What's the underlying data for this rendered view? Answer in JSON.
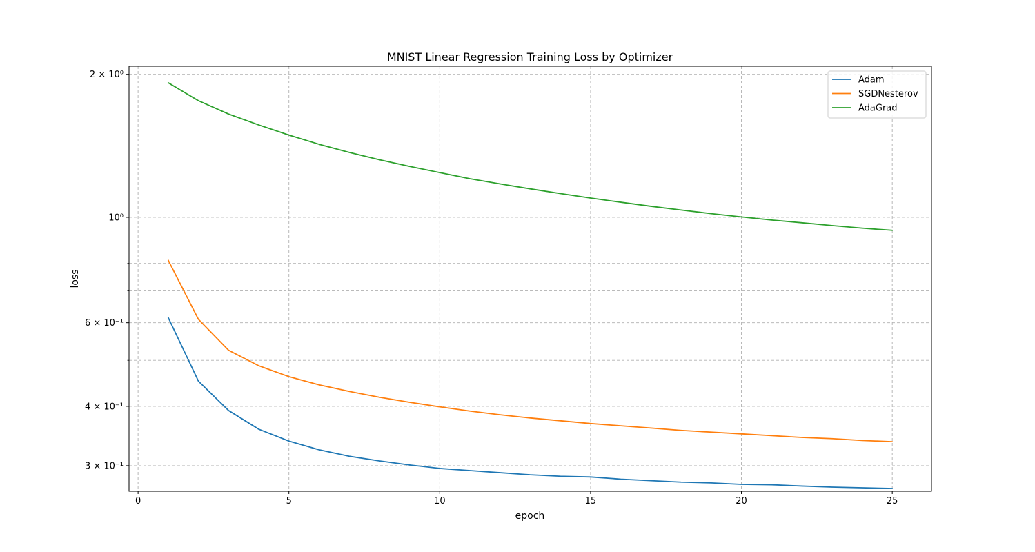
{
  "chart_data": {
    "type": "line",
    "title": "MNIST Linear Regression Training Loss by Optimizer",
    "xlabel": "epoch",
    "ylabel": "loss",
    "yscale": "log",
    "xlim": [
      -0.3,
      26.3
    ],
    "ylim": [
      0.265,
      2.08
    ],
    "x_ticks": [
      {
        "value": 0,
        "label": "0"
      },
      {
        "value": 5,
        "label": "5"
      },
      {
        "value": 10,
        "label": "10"
      },
      {
        "value": 15,
        "label": "15"
      },
      {
        "value": 20,
        "label": "20"
      },
      {
        "value": 25,
        "label": "25"
      }
    ],
    "y_major_ticks": [
      {
        "value": 0.3,
        "label": "3 × 10⁻¹"
      },
      {
        "value": 0.4,
        "label": "4 × 10⁻¹"
      },
      {
        "value": 0.6,
        "label": "6 × 10⁻¹"
      },
      {
        "value": 1.0,
        "label": "10⁰"
      },
      {
        "value": 2.0,
        "label": "2 × 10⁰"
      }
    ],
    "y_minor_ticks": [
      0.5,
      0.7,
      0.8,
      0.9
    ],
    "grid": true,
    "legend": "top-right",
    "x": [
      1,
      2,
      3,
      4,
      5,
      6,
      7,
      8,
      9,
      10,
      11,
      12,
      13,
      14,
      15,
      16,
      17,
      18,
      19,
      20,
      21,
      22,
      23,
      24,
      25
    ],
    "series": [
      {
        "name": "Adam",
        "color": "#1f77b4",
        "values": [
          0.615,
          0.452,
          0.392,
          0.358,
          0.338,
          0.324,
          0.314,
          0.307,
          0.301,
          0.296,
          0.293,
          0.29,
          0.287,
          0.285,
          0.284,
          0.281,
          0.279,
          0.277,
          0.276,
          0.274,
          0.2735,
          0.2718,
          0.2704,
          0.2695,
          0.2685
        ]
      },
      {
        "name": "SGDNesterov",
        "color": "#ff7f0e",
        "values": [
          0.812,
          0.61,
          0.525,
          0.487,
          0.462,
          0.444,
          0.43,
          0.418,
          0.408,
          0.399,
          0.391,
          0.384,
          0.378,
          0.373,
          0.368,
          0.364,
          0.36,
          0.356,
          0.353,
          0.35,
          0.347,
          0.344,
          0.342,
          0.339,
          0.337
        ]
      },
      {
        "name": "AdaGrad",
        "color": "#2ca02c",
        "values": [
          1.92,
          1.76,
          1.65,
          1.565,
          1.49,
          1.425,
          1.37,
          1.322,
          1.28,
          1.242,
          1.206,
          1.176,
          1.148,
          1.122,
          1.098,
          1.076,
          1.055,
          1.036,
          1.018,
          1.002,
          0.987,
          0.974,
          0.961,
          0.949,
          0.939
        ]
      }
    ]
  }
}
